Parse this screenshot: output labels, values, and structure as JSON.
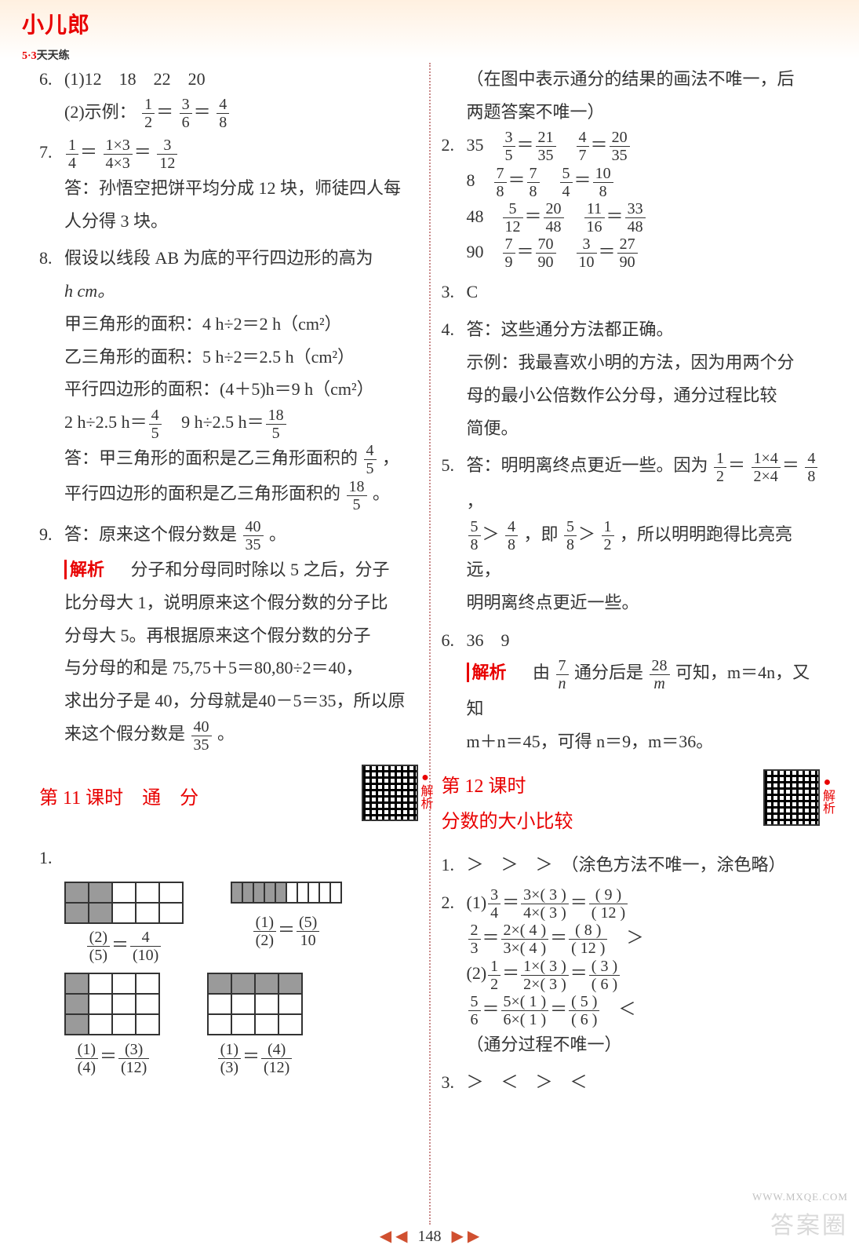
{
  "logo": {
    "main": "小儿郎",
    "sub_red": "5·3",
    "sub_black": "天天练"
  },
  "page_number": "148",
  "watermark": "答案圈",
  "mx": "WWW.MXQE.COM",
  "left": {
    "q6_num": "6.",
    "q6a": "(1)12　18　22　20",
    "q6b_lead": "(2)示例：",
    "q7_num": "7.",
    "q7_ans1": "答：孙悟空把饼平均分成 12 块，师徒四人每",
    "q7_ans2": "人分得 3 块。",
    "q8_num": "8.",
    "q8_1": "假设以线段 AB 为底的平行四边形的高为",
    "q8_2": "h cm。",
    "q8_3": "甲三角形的面积：4 h÷2＝2 h（cm²）",
    "q8_4": "乙三角形的面积：5 h÷2＝2.5 h（cm²）",
    "q8_5": "平行四边形的面积：(4＋5)h＝9 h（cm²）",
    "q8_ans1_a": "答：甲三角形的面积是乙三角形面积的",
    "q8_ans1_b": "，",
    "q8_ans2_a": "平行四边形的面积是乙三角形面积的",
    "q8_ans2_b": "。",
    "q9_num": "9.",
    "q9_a": "答：原来这个假分数是",
    "q9_b": "。",
    "analysis_label": "解析",
    "q9_p1": "　分子和分母同时除以 5 之后，分子",
    "q9_p2": "比分母大 1，说明原来这个假分数的分子比",
    "q9_p3": "分母大 5。再根据原来这个假分数的分子",
    "q9_p4": "与分母的和是 75,75＋5＝80,80÷2＝40，",
    "q9_p5": "求出分子是 40，分母就是40－5＝35，所以原",
    "q9_p6a": "来这个假分数是",
    "q9_p6b": "。",
    "s11_title": "第 11 课时　通　分",
    "q1_num": "1.",
    "grids": {
      "a": {
        "rows": 2,
        "cols": 5,
        "fill": [
          0,
          1,
          5,
          6
        ],
        "eq_n1": "(2)",
        "eq_d1": "(5)",
        "eq_n2": "4",
        "eq_d2": "(10)"
      },
      "b": {
        "rows": 1,
        "cols": 10,
        "fill": [
          0,
          1,
          2,
          3,
          4
        ],
        "eq_n1": "(1)",
        "eq_d1": "(2)",
        "eq_n2": "(5)",
        "eq_d2": "10"
      },
      "c": {
        "rows": 3,
        "cols": 4,
        "fill": [
          0,
          4,
          8
        ],
        "eq_n1": "(1)",
        "eq_d1": "(4)",
        "eq_n2": "(3)",
        "eq_d2": "(12)"
      },
      "d": {
        "rows": 3,
        "cols": 4,
        "fill": [
          0,
          1,
          2,
          3
        ],
        "eq_n1": "(1)",
        "eq_d1": "(3)",
        "eq_n2": "(4)",
        "eq_d2": "(12)"
      }
    }
  },
  "right": {
    "note1": "（在图中表示通分的结果的画法不唯一，后",
    "note2": "两题答案不唯一）",
    "q2_num": "2.",
    "q2_rows": [
      {
        "lead": "35",
        "a_n": "3",
        "a_d": "5",
        "a_rn": "21",
        "a_rd": "35",
        "b_n": "4",
        "b_d": "7",
        "b_rn": "20",
        "b_rd": "35"
      },
      {
        "lead": "8",
        "a_n": "7",
        "a_d": "8",
        "a_rn": "7",
        "a_rd": "8",
        "b_n": "5",
        "b_d": "4",
        "b_rn": "10",
        "b_rd": "8"
      },
      {
        "lead": "48",
        "a_n": "5",
        "a_d": "12",
        "a_rn": "20",
        "a_rd": "48",
        "b_n": "11",
        "b_d": "16",
        "b_rn": "33",
        "b_rd": "48"
      },
      {
        "lead": "90",
        "a_n": "7",
        "a_d": "9",
        "a_rn": "70",
        "a_rd": "90",
        "b_n": "3",
        "b_d": "10",
        "b_rn": "27",
        "b_rd": "90"
      }
    ],
    "q3_num": "3.",
    "q3": "C",
    "q4_num": "4.",
    "q4_1": "答：这些通分方法都正确。",
    "q4_2": "示例：我最喜欢小明的方法，因为用两个分",
    "q4_3": "母的最小公倍数作公分母，通分过程比较",
    "q4_4": "简便。",
    "q5_num": "5.",
    "q5_1a": "答：明明离终点更近一些。因为",
    "q5_1b": "，",
    "q5_2a": "，即",
    "q5_2b": "，所以明明跑得比亮亮远，",
    "q5_3": "明明离终点更近一些。",
    "q6_num": "6.",
    "q6": "36　9",
    "q6_p1a": "　由",
    "q6_p1b": "通分后是",
    "q6_p1c": "可知，m＝4n，又知",
    "q6_p2": "m＋n＝45，可得 n＝9，m＝36。",
    "s12_a": "第 12 课时",
    "s12_b": "分数的大小比较",
    "r_q1_num": "1.",
    "r_q1": "＞　＞　＞　（涂色方法不唯一，涂色略）",
    "r_q2_num": "2.",
    "r_q2_1": {
      "lead": "(1)",
      "n": "3",
      "d": "4",
      "mn": "3×( 3 )",
      "md": "4×( 3 )",
      "rn": "( 9 )",
      "rd": "( 12 )"
    },
    "r_q2_2": {
      "lead": "",
      "n": "2",
      "d": "3",
      "mn": "2×( 4 )",
      "md": "3×( 4 )",
      "rn": "( 8 )",
      "rd": "( 12 )",
      "tail": "＞"
    },
    "r_q2_3": {
      "lead": "(2)",
      "n": "1",
      "d": "2",
      "mn": "1×( 3 )",
      "md": "2×( 3 )",
      "rn": "( 3 )",
      "rd": "( 6 )"
    },
    "r_q2_4": {
      "lead": "",
      "n": "5",
      "d": "6",
      "mn": "5×( 1 )",
      "md": "6×( 1 )",
      "rn": "( 5 )",
      "rd": "( 6 )",
      "tail": "＜"
    },
    "r_q2_note": "（通分过程不唯一）",
    "r_q3_num": "3.",
    "r_q3": "＞　＜　＞　＜"
  }
}
